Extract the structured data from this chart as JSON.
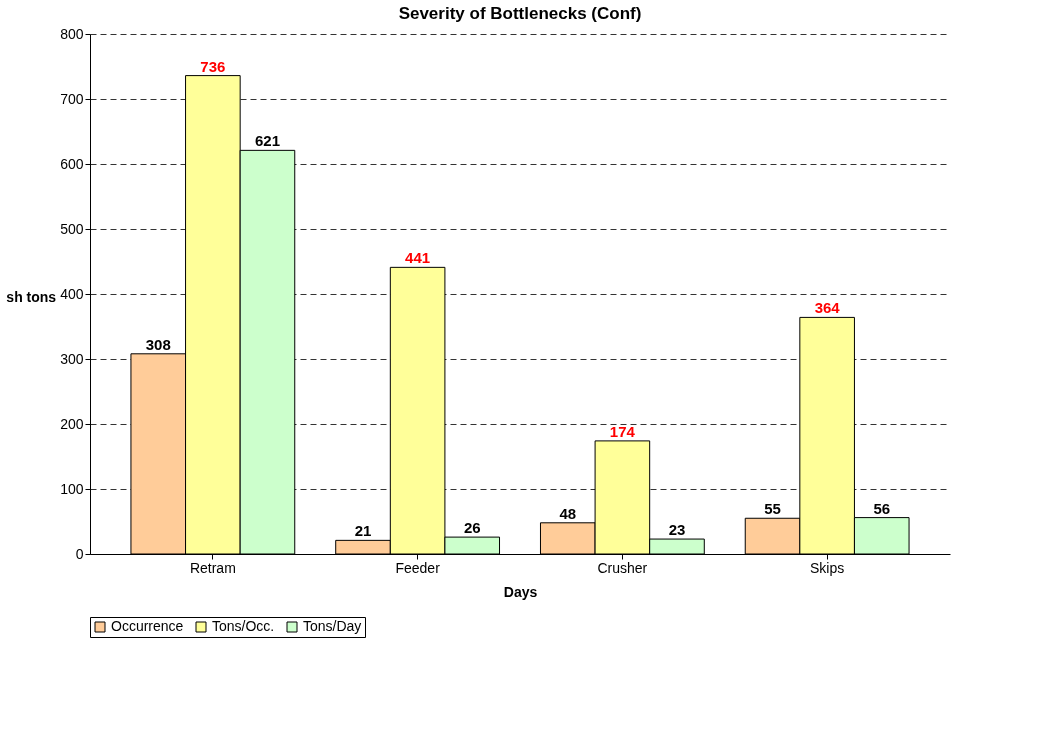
{
  "chart_data": {
    "type": "bar",
    "title": "Severity of Bottlenecks (Conf)",
    "xlabel": "Days",
    "ylabel": "sh tons",
    "categories": [
      "Retram",
      "Feeder",
      "Crusher",
      "Skips"
    ],
    "series": [
      {
        "name": "Occurrence",
        "color": "#ffcc99",
        "values": [
          308,
          21,
          48,
          55
        ]
      },
      {
        "name": "Tons/Occ.",
        "color": "#ffff99",
        "values": [
          736,
          441,
          174,
          364
        ]
      },
      {
        "name": "Tons/Day",
        "color": "#ccffcc",
        "values": [
          621,
          26,
          23,
          56
        ]
      }
    ],
    "ylim": [
      0,
      800
    ],
    "yticks": [
      0,
      100,
      200,
      300,
      400,
      500,
      600,
      700,
      800
    ],
    "grid": "y",
    "legend": "bottom",
    "data_labels": true
  }
}
